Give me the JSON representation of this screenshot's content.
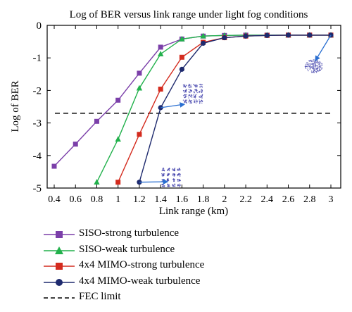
{
  "chart_data": {
    "type": "line",
    "title": "Log of BER versus link range under light fog conditions",
    "xlabel": "Link range (km)",
    "ylabel": "Log of BER",
    "xlim": [
      0.3,
      3.1
    ],
    "ylim": [
      -5,
      0
    ],
    "xticks": [
      "0.4",
      "0.6",
      "0.8",
      "1",
      "1.2",
      "1.4",
      "1.6",
      "1.8",
      "2",
      "2.2",
      "2.4",
      "2.6",
      "2.8",
      "3"
    ],
    "yticks": [
      "0",
      "-1",
      "-2",
      "-3",
      "-4",
      "-5"
    ],
    "grid": false,
    "legend_position": "below",
    "series": [
      {
        "name": "SISO-strong turbulence",
        "color": "#7b3fa9",
        "marker": "square",
        "x": [
          0.4,
          0.6,
          0.8,
          1.0,
          1.2,
          1.4,
          1.6,
          1.8,
          2.0,
          2.2,
          2.4,
          2.6,
          2.8,
          3.0
        ],
        "y": [
          -4.33,
          -3.65,
          -2.95,
          -2.3,
          -1.47,
          -0.67,
          -0.42,
          -0.33,
          -0.31,
          -0.3,
          -0.3,
          -0.3,
          -0.3,
          -0.3
        ]
      },
      {
        "name": "SISO-weak turbulence",
        "color": "#22b14c",
        "marker": "triangle",
        "x": [
          0.8,
          1.0,
          1.2,
          1.4,
          1.6,
          1.8,
          2.0,
          2.2,
          2.4,
          2.6,
          2.8,
          3.0
        ],
        "y": [
          -4.82,
          -3.5,
          -1.93,
          -0.88,
          -0.42,
          -0.33,
          -0.31,
          -0.3,
          -0.3,
          -0.3,
          -0.3,
          -0.3
        ]
      },
      {
        "name": "4x4 MIMO-strong turbulence",
        "color": "#d42b1e",
        "marker": "square",
        "x": [
          1.0,
          1.2,
          1.4,
          1.6,
          1.8,
          2.0,
          2.2,
          2.4,
          2.6,
          2.8,
          3.0
        ],
        "y": [
          -4.82,
          -3.35,
          -1.96,
          -0.98,
          -0.52,
          -0.38,
          -0.33,
          -0.31,
          -0.3,
          -0.3,
          -0.3
        ]
      },
      {
        "name": "4x4 MIMO-weak turbulence",
        "color": "#1e2a6e",
        "marker": "circle",
        "x": [
          1.2,
          1.4,
          1.6,
          1.8,
          2.0,
          2.2,
          2.4,
          2.6,
          2.8,
          3.0
        ],
        "y": [
          -4.82,
          -2.53,
          -1.35,
          -0.55,
          -0.38,
          -0.33,
          -0.31,
          -0.3,
          -0.3,
          -0.3
        ]
      }
    ],
    "fec_limit": {
      "name": "FEC limit",
      "y": -2.7,
      "color": "#000000"
    },
    "annotation_color": "#2a6fd1",
    "inset_color": "#3a3aa8"
  }
}
